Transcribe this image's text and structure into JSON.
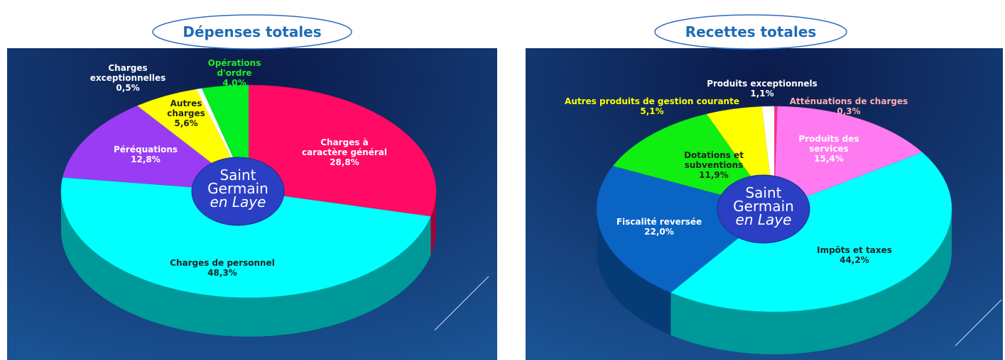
{
  "chart_data": [
    {
      "type": "pie",
      "title": "Dépenses totales",
      "logo": [
        "Saint",
        "Germain",
        "en Laye"
      ],
      "categories": [
        "Charges à caractère général",
        "Charges de personnel",
        "Péréquations",
        "Autres charges",
        "Charges exceptionnelles",
        "Opérations d'ordre"
      ],
      "values": [
        28.8,
        48.3,
        12.8,
        5.6,
        0.5,
        4.0
      ],
      "value_labels": [
        "28,8%",
        "48,3%",
        "12,8%",
        "5,6%",
        "0,5%",
        "4,0%"
      ],
      "colors": [
        "#ff0a64",
        "#00ffff",
        "#9b3cf5",
        "#ffff00",
        "#ffffff",
        "#00ee22"
      ]
    },
    {
      "type": "pie",
      "title": "Recettes totales",
      "logo": [
        "Saint",
        "Germain",
        "en Laye"
      ],
      "categories": [
        "Atténuations de charges",
        "Produits des services",
        "Impôts et taxes",
        "Fiscalité reversée",
        "Dotations et subventions",
        "Autres produits de gestion courante",
        "Produits exceptionnels"
      ],
      "values": [
        0.3,
        15.4,
        44.2,
        22.0,
        11.9,
        5.1,
        1.1
      ],
      "value_labels": [
        "0,3%",
        "15,4%",
        "44,2%",
        "22,0%",
        "11,9%",
        "5,1%",
        "1,1%"
      ],
      "colors": [
        "#ff2b8a",
        "#ff7af0",
        "#00ffff",
        "#0a64c4",
        "#11ee11",
        "#ffff00",
        "#ffffff"
      ]
    }
  ]
}
